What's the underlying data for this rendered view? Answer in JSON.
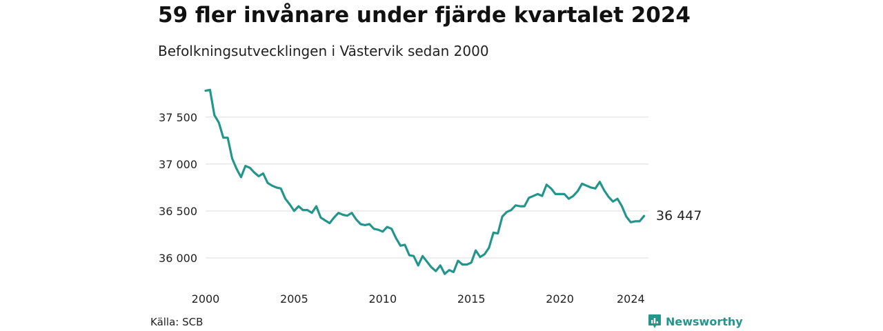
{
  "title": "59 fler invånare under fjärde kvartalet 2024",
  "subtitle": "Befolkningsutvecklingen i Västervik sedan 2000",
  "source": "Källa: SCB",
  "brand": {
    "name": "Newsworthy",
    "icon": "newsworthy-logo-icon",
    "color": "#23968b"
  },
  "chart_data": {
    "type": "line",
    "title": "59 fler invånare under fjärde kvartalet 2024",
    "subtitle": "Befolkningsutvecklingen i Västervik sedan 2000",
    "xlabel": "",
    "ylabel": "",
    "color": "#23968b",
    "grid": true,
    "ylim": [
      35780,
      37880
    ],
    "xlim": [
      2000,
      2025
    ],
    "yticks": [
      36000,
      36500,
      37000,
      37500
    ],
    "ytick_labels": [
      "36 000",
      "36 500",
      "37 000",
      "37 500"
    ],
    "xticks": [
      2000,
      2005,
      2010,
      2015,
      2020,
      2024
    ],
    "xtick_labels": [
      "2000",
      "2005",
      "2010",
      "2015",
      "2020",
      "2024"
    ],
    "end_label": "36 447",
    "series": [
      {
        "x_start": 2000.0,
        "x_step": 0.25,
        "values": [
          37780,
          37790,
          37520,
          37440,
          37280,
          37280,
          37060,
          36950,
          36860,
          36980,
          36960,
          36910,
          36870,
          36900,
          36800,
          36770,
          36750,
          36740,
          36630,
          36570,
          36500,
          36550,
          36510,
          36510,
          36480,
          36550,
          36430,
          36400,
          36370,
          36430,
          36480,
          36460,
          36450,
          36480,
          36410,
          36360,
          36350,
          36360,
          36310,
          36300,
          36280,
          36330,
          36310,
          36210,
          36130,
          36140,
          36030,
          36020,
          35920,
          36020,
          35960,
          35900,
          35860,
          35920,
          35830,
          35870,
          35850,
          35970,
          35930,
          35930,
          35950,
          36080,
          36010,
          36040,
          36110,
          36270,
          36260,
          36440,
          36490,
          36510,
          36560,
          36550,
          36550,
          36640,
          36660,
          36680,
          36660,
          36780,
          36740,
          36680,
          36680,
          36680,
          36630,
          36660,
          36710,
          36790,
          36770,
          36750,
          36740,
          36810,
          36720,
          36650,
          36600,
          36630,
          36550,
          36440,
          36380,
          36390,
          36390,
          36447
        ]
      }
    ]
  }
}
